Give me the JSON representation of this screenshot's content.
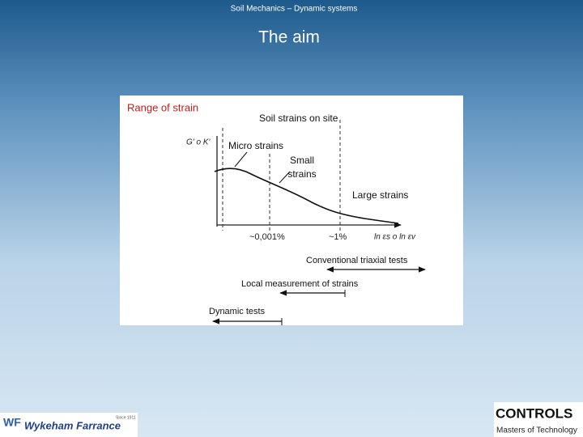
{
  "header": {
    "subtitle": "Soil Mechanics – Dynamic systems",
    "title": "The aim"
  },
  "figure": {
    "heading": "Range of strain",
    "site_label": "Soil strains on site",
    "y_axis_label": "G' o K'",
    "zones": {
      "micro": "Micro strains",
      "small": [
        "Small",
        "strains"
      ],
      "large": "Large strains"
    },
    "x_marks": [
      "~0,001%",
      "~1%"
    ],
    "x_axis_label": "ln εs o ln εv",
    "tests": [
      "Conventional triaxial tests",
      "Local measurement of strains",
      "Dynamic  tests"
    ]
  },
  "footer": {
    "left_logo": {
      "mark": "WF",
      "name": "Wykeham Farrance",
      "since": "Since 1911"
    },
    "right_logo": {
      "name": "CONTROLS",
      "tagline": "Masters of Technology"
    }
  }
}
